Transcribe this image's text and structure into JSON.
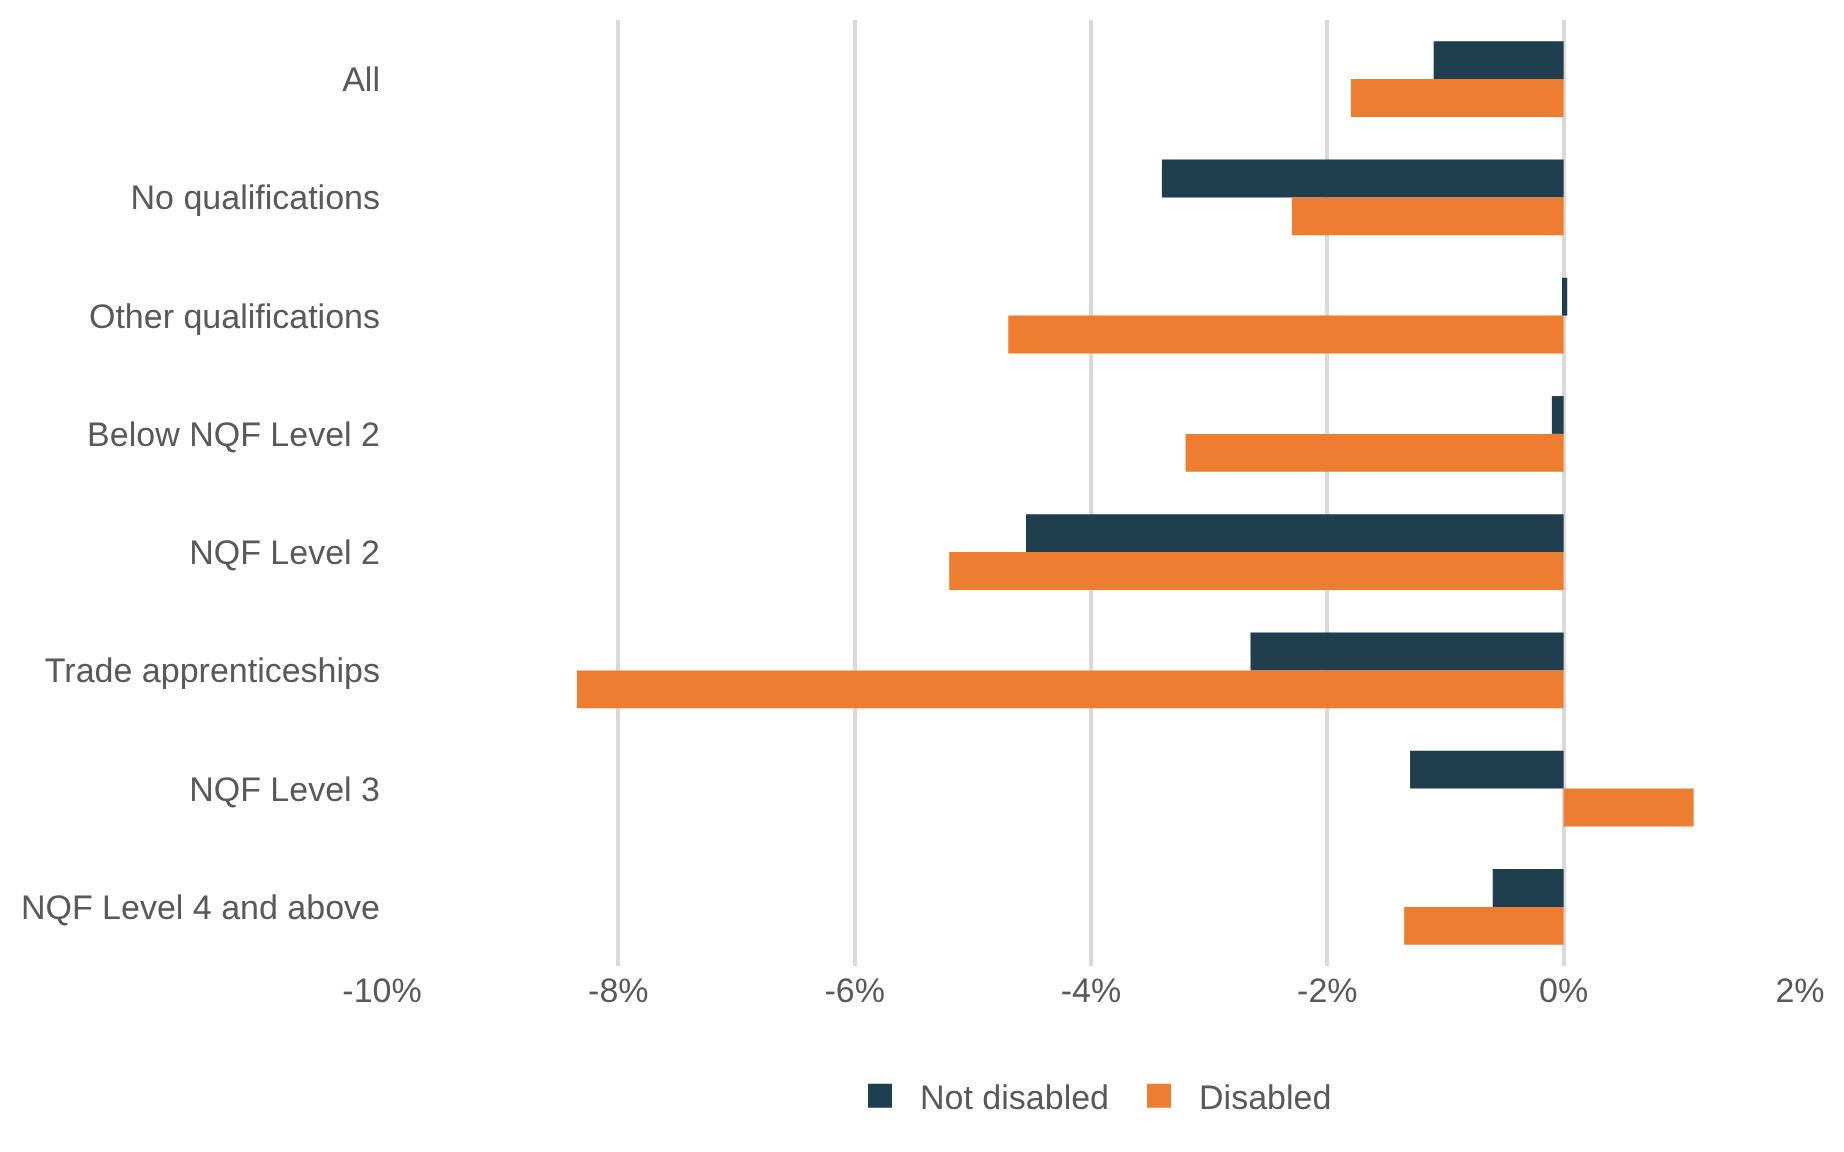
{
  "chart_data": {
    "type": "bar",
    "orientation": "horizontal",
    "categories": [
      "All",
      "No qualifications",
      "Other qualifications",
      "Below NQF Level 2",
      "NQF Level 2",
      "Trade apprenticeships",
      "NQF Level 3",
      "NQF Level 4 and above"
    ],
    "series": [
      {
        "name": "Not disabled",
        "color": "#203f4e",
        "values": [
          -1.1,
          -3.4,
          0.03,
          -0.1,
          -4.55,
          -2.65,
          -1.3,
          -0.6
        ]
      },
      {
        "name": "Disabled",
        "color": "#ed7d31",
        "values": [
          -1.8,
          -2.3,
          -4.7,
          -3.2,
          -5.2,
          -8.35,
          1.1,
          -1.35
        ]
      }
    ],
    "xlim": [
      -10,
      2
    ],
    "xticks": [
      {
        "value": -10,
        "label": "-10%"
      },
      {
        "value": -8,
        "label": "-8%"
      },
      {
        "value": -6,
        "label": "-6%"
      },
      {
        "value": -4,
        "label": "-4%"
      },
      {
        "value": -2,
        "label": "-2%"
      },
      {
        "value": 0,
        "label": "0%"
      },
      {
        "value": 2,
        "label": "2%"
      }
    ],
    "grid": "x",
    "legend": "bottom"
  }
}
